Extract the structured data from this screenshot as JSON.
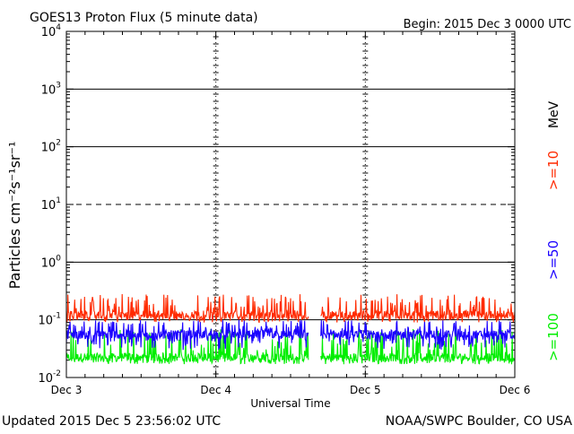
{
  "header": {
    "title": "GOES13 Proton Flux (5 minute data)",
    "begin": "Begin: 2015 Dec 3 0000 UTC"
  },
  "footer": {
    "updated": "Updated 2015 Dec  5 23:56:02 UTC",
    "credit": "NOAA/SWPC Boulder, CO USA"
  },
  "chart_data": {
    "type": "line",
    "title": "GOES13 Proton Flux (5 minute data)",
    "xlabel": "Universal Time",
    "ylabel": "Particles cm⁻²s⁻¹sr⁻¹",
    "yscale": "log",
    "ylim": [
      0.01,
      10000
    ],
    "xlim": [
      0,
      3
    ],
    "x_unit": "days since 2015 Dec 3 0000 UTC",
    "x_ticks": [
      {
        "value": 0,
        "label": "Dec 3"
      },
      {
        "value": 1,
        "label": "Dec 4"
      },
      {
        "value": 2,
        "label": "Dec 5"
      },
      {
        "value": 3,
        "label": "Dec 6"
      }
    ],
    "y_ticks": [
      {
        "exp": -2,
        "base": "10",
        "sup": "-2"
      },
      {
        "exp": -1,
        "base": "10",
        "sup": "-1"
      },
      {
        "exp": 0,
        "base": "10",
        "sup": "0"
      },
      {
        "exp": 1,
        "base": "10",
        "sup": "1"
      },
      {
        "exp": 2,
        "base": "10",
        "sup": "2"
      },
      {
        "exp": 3,
        "base": "10",
        "sup": "3"
      },
      {
        "exp": 4,
        "base": "10",
        "sup": "4"
      }
    ],
    "threshold_lines": [
      {
        "value": 1000,
        "style": "solid"
      },
      {
        "value": 100,
        "style": "solid"
      },
      {
        "value": 10,
        "style": "dashed"
      },
      {
        "value": 1,
        "style": "solid"
      },
      {
        "value": 0.1,
        "style": "solid"
      }
    ],
    "data_gaps": [
      {
        "from": 1.62,
        "to": 1.7
      }
    ],
    "series": [
      {
        "name": ">=10",
        "color": "#ff2a00",
        "baseline": 0.12,
        "spike_max": 0.28,
        "dip_min": 0.09
      },
      {
        "name": ">=50",
        "color": "#1a00ff",
        "baseline": 0.055,
        "spike_max": 0.1,
        "dip_min": 0.03
      },
      {
        "name": ">=100",
        "color": "#00ee00",
        "baseline": 0.022,
        "spike_max": 0.07,
        "dip_min": 0.017
      }
    ],
    "legend": {
      "unit": "MeV",
      "placement": "right",
      "labels": [
        ">=10",
        ">=50",
        ">=100"
      ]
    }
  }
}
